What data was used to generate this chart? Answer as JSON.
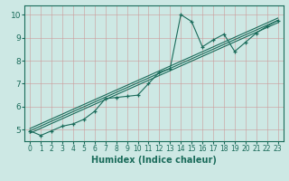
{
  "xlabel": "Humidex (Indice chaleur)",
  "bg_color": "#cde8e4",
  "grid_color": "#b0c8c4",
  "line_color": "#1a6b5a",
  "xlim": [
    -0.5,
    23.5
  ],
  "ylim": [
    4.5,
    10.4
  ],
  "xticks": [
    0,
    1,
    2,
    3,
    4,
    5,
    6,
    7,
    8,
    9,
    10,
    11,
    12,
    13,
    14,
    15,
    16,
    17,
    18,
    19,
    20,
    21,
    22,
    23
  ],
  "yticks": [
    5,
    6,
    7,
    8,
    9,
    10
  ],
  "series1_x": [
    0,
    1,
    2,
    3,
    4,
    5,
    6,
    7,
    8,
    9,
    10,
    11,
    12,
    13,
    14,
    15,
    16,
    17,
    18,
    19,
    20,
    21,
    22,
    23
  ],
  "series1_y": [
    4.95,
    4.75,
    4.95,
    5.15,
    5.25,
    5.45,
    5.8,
    6.35,
    6.4,
    6.45,
    6.5,
    7.0,
    7.5,
    7.65,
    10.0,
    9.7,
    8.6,
    8.9,
    9.15,
    8.4,
    8.8,
    9.2,
    9.5,
    9.75
  ],
  "series2_x": [
    0,
    23
  ],
  "series2_y": [
    4.95,
    9.75
  ],
  "series3_x": [
    0,
    23
  ],
  "series3_y": [
    5.05,
    9.85
  ],
  "series4_x": [
    0,
    23
  ],
  "series4_y": [
    4.85,
    9.65
  ]
}
